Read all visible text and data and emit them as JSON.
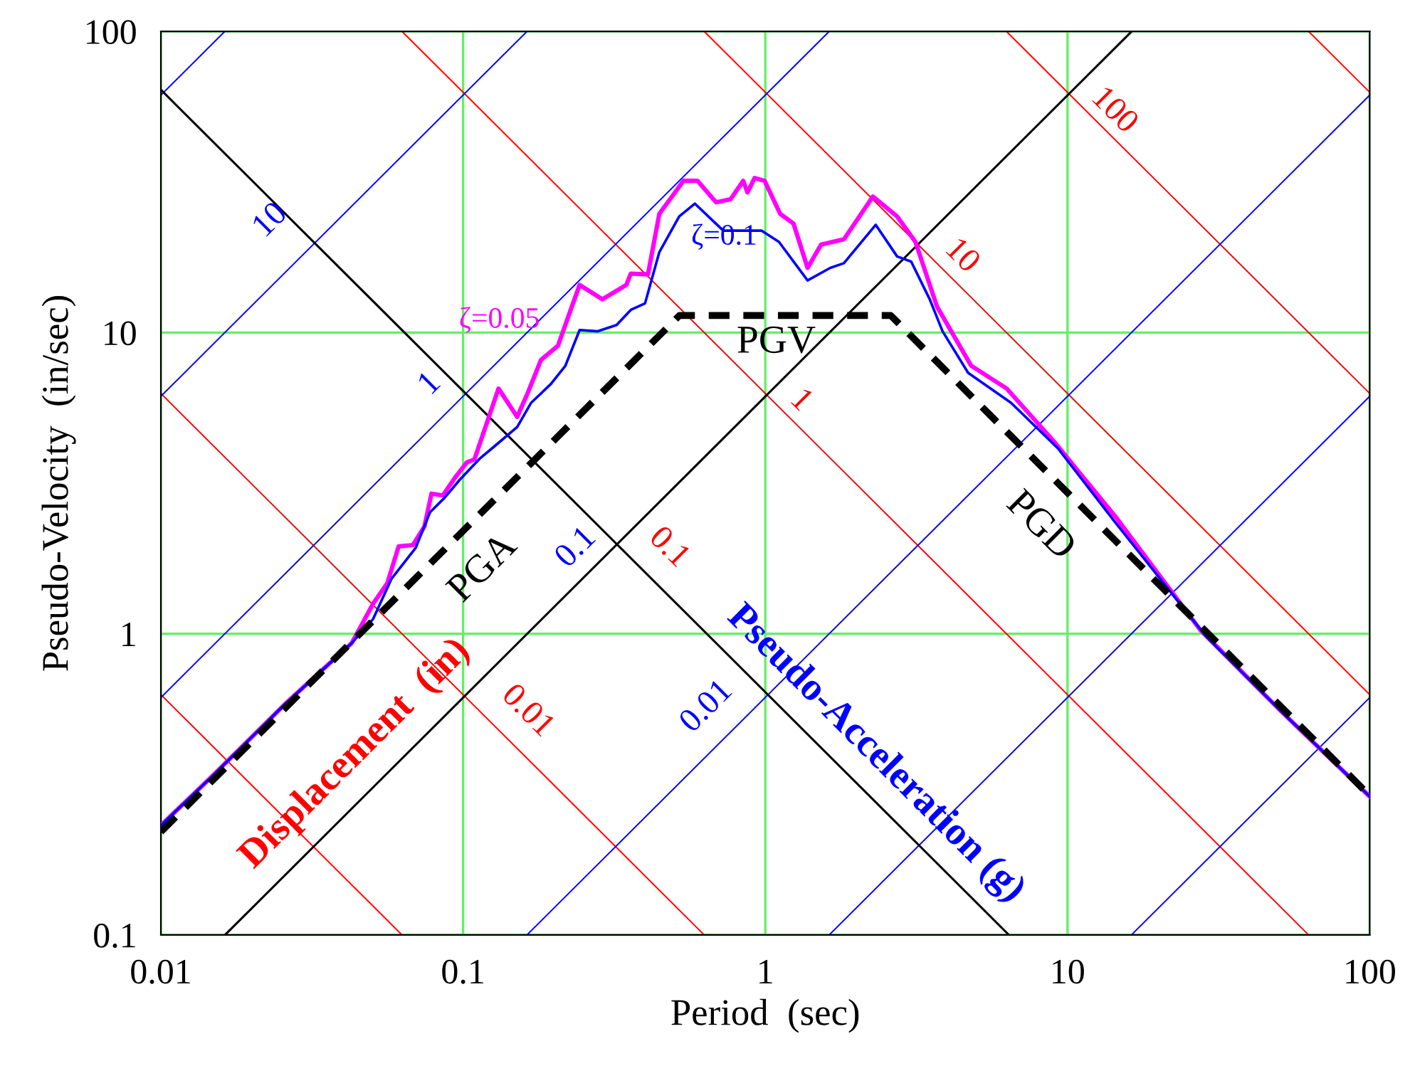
{
  "chart_data": {
    "type": "line",
    "xlabel": "Period  (sec)",
    "ylabel": "Pseudo-Velocity  (in/sec)",
    "log": "xy",
    "grid": true,
    "xlim": [
      0.01,
      100
    ],
    "ylim": [
      0.1,
      100
    ],
    "xticks": [
      0.01,
      0.1,
      1,
      10,
      100
    ],
    "yticks": [
      0.1,
      1,
      10,
      100
    ],
    "series": [
      {
        "color": "#ff0000",
        "x": [
          0.01,
          0.0628
        ],
        "values": [
          0.628,
          0.1
        ]
      },
      {
        "color": "#ff0000",
        "x": [
          0.01,
          0.628
        ],
        "values": [
          6.28,
          0.1
        ]
      },
      {
        "color": "#ff0000",
        "x": [
          0.0628,
          62.8
        ],
        "values": [
          100,
          0.1
        ]
      },
      {
        "color": "#ff0000",
        "x": [
          0.628,
          100
        ],
        "values": [
          100,
          0.628
        ]
      },
      {
        "color": "#ff0000",
        "x": [
          6.28,
          100
        ],
        "values": [
          100,
          6.28
        ]
      },
      {
        "color": "#ff0000",
        "x": [
          62.8,
          100
        ],
        "values": [
          100,
          62.8
        ]
      },
      {
        "color": "#0000ff",
        "x": [
          0.01,
          0.01627
        ],
        "values": [
          61.45,
          100
        ]
      },
      {
        "color": "#0000ff",
        "x": [
          0.01,
          0.1627
        ],
        "values": [
          6.145,
          100
        ]
      },
      {
        "color": "#0000ff",
        "x": [
          0.01,
          1.627
        ],
        "values": [
          0.614,
          100
        ]
      },
      {
        "color": "#0000ff",
        "x": [
          0.1627,
          100
        ],
        "values": [
          0.1,
          61.45
        ]
      },
      {
        "color": "#0000ff",
        "x": [
          1.627,
          100
        ],
        "values": [
          0.1,
          6.145
        ]
      },
      {
        "color": "#0000ff",
        "x": [
          16.27,
          100
        ],
        "values": [
          0.1,
          0.614
        ]
      },
      {
        "color": "#000000",
        "x": [
          0.0163,
          16.3
        ],
        "values": [
          0.1,
          100
        ]
      },
      {
        "color": "#000000",
        "x": [
          0.01,
          6.4
        ],
        "values": [
          64,
          0.1
        ]
      },
      {
        "color": "#ff00ff",
        "x": [
          0.01,
          0.0149,
          0.0257,
          0.0428,
          0.0504,
          0.0561,
          0.0612,
          0.0682,
          0.0745,
          0.0786,
          0.0857,
          0.0945,
          0.103,
          0.109,
          0.131,
          0.151,
          0.163,
          0.181,
          0.206,
          0.225,
          0.243,
          0.289,
          0.347,
          0.359,
          0.409,
          0.446,
          0.536,
          0.597,
          0.687,
          0.767,
          0.845,
          0.873,
          0.922,
          0.995,
          1.12,
          1.24,
          1.38,
          1.53,
          1.82,
          2.27,
          2.73,
          3.14,
          3.7,
          4.8,
          6.29,
          9.0,
          14.4,
          27.5,
          51.0,
          100
        ],
        "values": [
          0.231,
          0.339,
          0.583,
          0.931,
          1.26,
          1.47,
          1.95,
          1.97,
          2.27,
          2.92,
          2.88,
          3.32,
          3.71,
          3.79,
          6.52,
          5.25,
          6.24,
          8.11,
          9.04,
          11.6,
          14.4,
          12.9,
          14.4,
          15.7,
          15.6,
          24.8,
          31.9,
          31.9,
          27.1,
          27.7,
          31.9,
          29.2,
          32.6,
          31.9,
          24.8,
          23.0,
          16.4,
          19.6,
          20.4,
          28.3,
          24.3,
          20.0,
          12.2,
          7.76,
          6.52,
          4.36,
          2.45,
          1.03,
          0.552,
          0.288
        ]
      },
      {
        "color": "#0000ff",
        "x": [
          0.01,
          0.0149,
          0.0257,
          0.0428,
          0.0504,
          0.0579,
          0.0697,
          0.0777,
          0.0866,
          0.0976,
          0.114,
          0.128,
          0.151,
          0.168,
          0.195,
          0.218,
          0.243,
          0.279,
          0.322,
          0.359,
          0.4,
          0.446,
          0.519,
          0.585,
          0.726,
          0.855,
          0.973,
          1.11,
          1.38,
          1.64,
          1.82,
          2.32,
          2.73,
          3.04,
          3.5,
          3.86,
          4.69,
          6.5,
          9.29,
          14.4,
          28.7,
          51.0,
          100
        ],
        "values": [
          0.231,
          0.339,
          0.583,
          0.931,
          1.12,
          1.52,
          1.93,
          2.53,
          2.82,
          3.25,
          3.83,
          4.22,
          4.86,
          5.85,
          6.74,
          7.76,
          10.2,
          10.1,
          10.6,
          11.9,
          12.5,
          18.5,
          24.3,
          26.8,
          21.8,
          21.8,
          21.8,
          20.0,
          14.9,
          16.4,
          17.0,
          22.8,
          17.9,
          17.2,
          12.9,
          10.1,
          7.35,
          5.85,
          4.13,
          2.34,
          0.982,
          0.552,
          0.288
        ]
      },
      {
        "color": "#000000",
        "line_style": "dashed",
        "x": [
          0.01,
          0.52,
          2.6,
          100
        ],
        "values": [
          0.22,
          11.4,
          11.4,
          0.29
        ]
      }
    ],
    "annotations": [
      "PGA",
      "PGV",
      "PGD",
      "ζ=0.05",
      "ζ=0.1",
      "0.01",
      "0.1",
      "1",
      "10",
      "100",
      "10",
      "1",
      "0.1",
      "0.01",
      "Displacement  (in)",
      "Pseudo-Acceleration (g)"
    ]
  }
}
